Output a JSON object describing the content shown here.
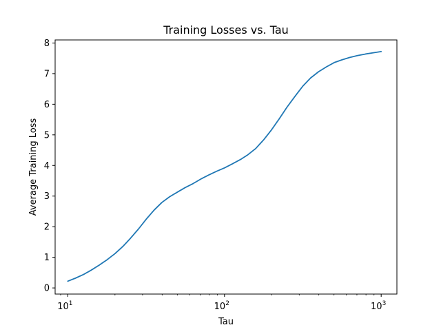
{
  "chart_data": {
    "type": "line",
    "title": "Training Losses vs. Tau",
    "xlabel": "Tau",
    "ylabel": "Average Training Loss",
    "xscale": "log",
    "xlim": [
      8.3,
      1260
    ],
    "ylim": [
      -0.2,
      8.1
    ],
    "x_ticks": [
      {
        "value": 10,
        "base": "10",
        "exp": "1"
      },
      {
        "value": 100,
        "base": "10",
        "exp": "2"
      },
      {
        "value": 1000,
        "base": "10",
        "exp": "3"
      }
    ],
    "y_ticks": [
      "0",
      "1",
      "2",
      "3",
      "4",
      "5",
      "6",
      "7",
      "8"
    ],
    "grid": false,
    "legend": "none",
    "series": [
      {
        "color": "#1f77b4",
        "x": [
          10,
          11.2,
          12.6,
          14.1,
          15.8,
          17.8,
          20,
          22.4,
          25.1,
          28.2,
          31.6,
          35.5,
          39.8,
          44.7,
          50.1,
          56.2,
          63.1,
          70.8,
          79.4,
          89.1,
          100,
          112,
          126,
          141,
          158,
          178,
          200,
          224,
          251,
          282,
          316,
          355,
          398,
          447,
          501,
          562,
          631,
          708,
          794,
          891,
          1000
        ],
        "y": [
          0.22,
          0.32,
          0.44,
          0.58,
          0.74,
          0.92,
          1.12,
          1.35,
          1.62,
          1.92,
          2.24,
          2.54,
          2.79,
          2.98,
          3.13,
          3.28,
          3.41,
          3.56,
          3.69,
          3.81,
          3.92,
          4.05,
          4.19,
          4.35,
          4.55,
          4.84,
          5.17,
          5.53,
          5.91,
          6.26,
          6.59,
          6.86,
          7.06,
          7.22,
          7.36,
          7.45,
          7.53,
          7.59,
          7.64,
          7.68,
          7.72
        ]
      }
    ]
  }
}
